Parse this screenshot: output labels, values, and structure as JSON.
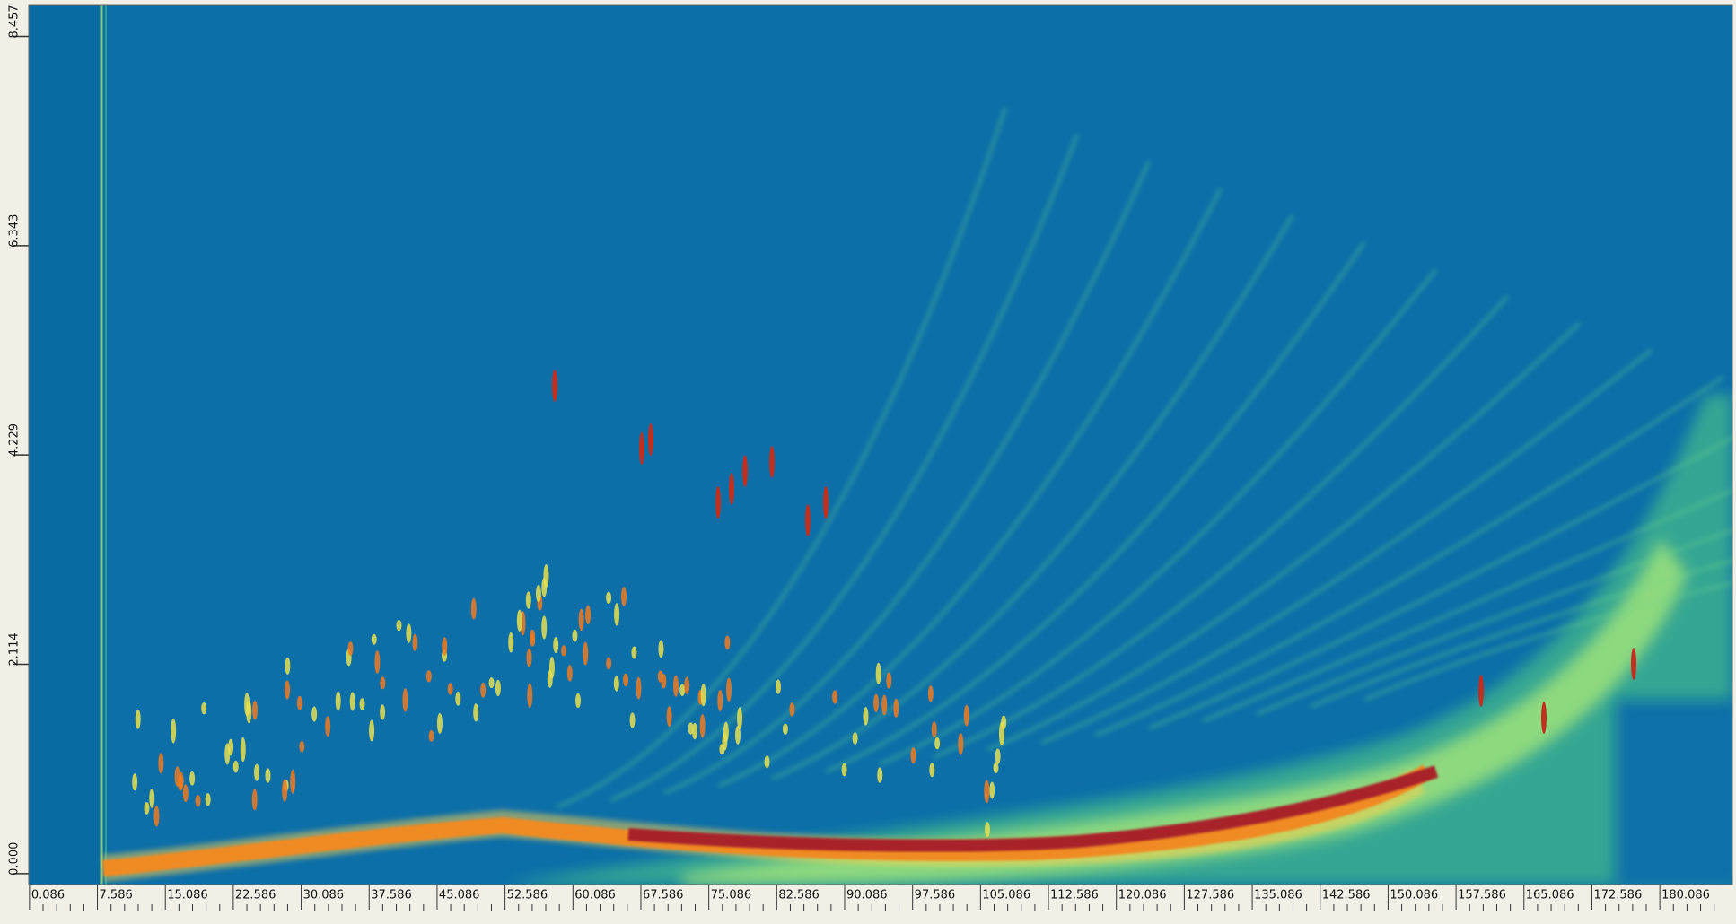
{
  "chart_data": {
    "type": "heatmap",
    "xlim": [
      0,
      188.1
    ],
    "xticks": [
      0.086,
      7.586,
      15.086,
      22.586,
      30.086,
      37.586,
      45.086,
      52.586,
      60.086,
      67.586,
      75.086,
      82.586,
      90.086,
      97.586,
      105.086,
      112.586,
      120.086,
      127.586,
      135.086,
      142.586,
      150.086,
      157.586,
      165.086,
      172.586,
      180.086
    ],
    "ylim": [
      -0.11,
      8.77
    ],
    "yticks": [
      {
        "value": 0,
        "label": "0.000"
      },
      2.114,
      4.229,
      6.343,
      8.457
    ]
  }
}
